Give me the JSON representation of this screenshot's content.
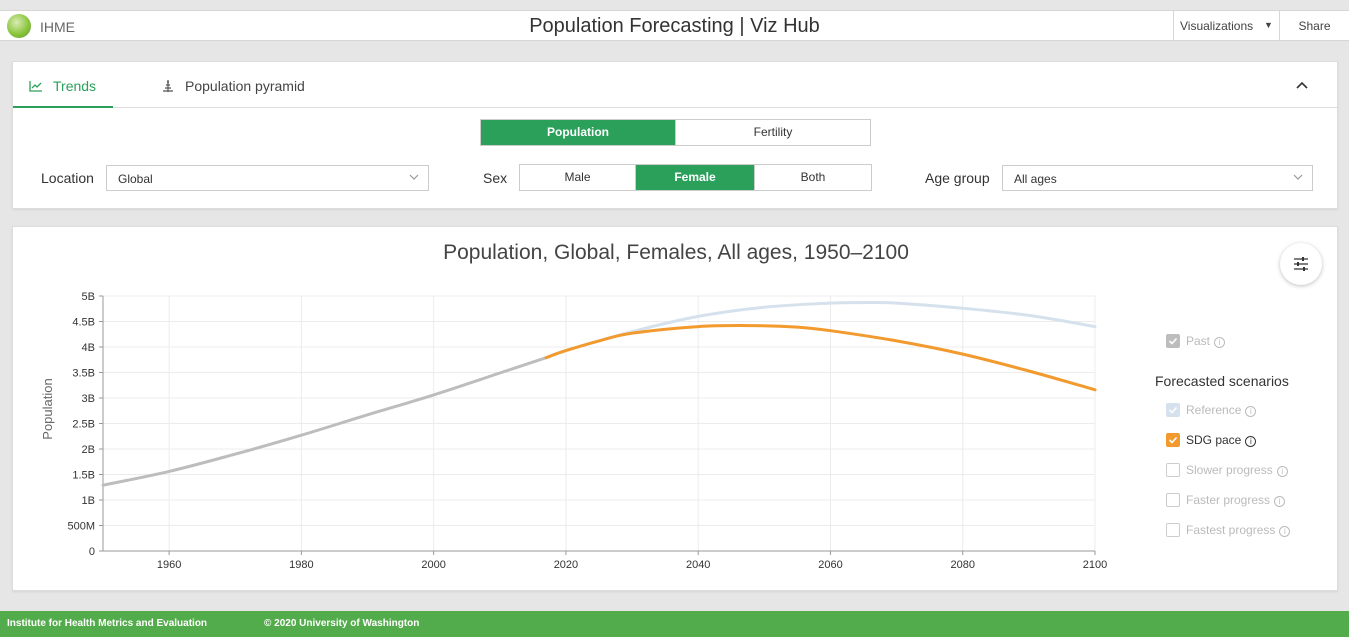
{
  "header": {
    "brand": "IHME",
    "title": "Population Forecasting | Viz Hub",
    "visualizations_label": "Visualizations",
    "share_label": "Share"
  },
  "tabs": {
    "trends": "Trends",
    "pyramid": "Population pyramid"
  },
  "controls": {
    "measure": {
      "options": [
        "Population",
        "Fertility"
      ],
      "selected": "Population"
    },
    "location": {
      "label": "Location",
      "value": "Global"
    },
    "sex": {
      "label": "Sex",
      "options": [
        "Male",
        "Female",
        "Both"
      ],
      "selected": "Female"
    },
    "age_group": {
      "label": "Age group",
      "value": "All ages"
    }
  },
  "legend": {
    "past": "Past",
    "heading": "Forecasted scenarios",
    "reference": "Reference",
    "sdg_pace": "SDG pace",
    "slower": "Slower progress",
    "faster": "Faster progress",
    "fastest": "Fastest progress"
  },
  "colors": {
    "accent_green": "#2aa05a",
    "past": "#bdbdbd",
    "reference": "#d5e1ec",
    "sdg_pace": "#f29a2e",
    "footer": "#53ac4b"
  },
  "chart_data": {
    "type": "line",
    "title": "Population, Global, Females, All ages, 1950–2100",
    "xlabel": "",
    "ylabel": "Population",
    "xlim": [
      1950,
      2100
    ],
    "ylim": [
      0,
      5000000000
    ],
    "x_ticks": [
      1960,
      1980,
      2000,
      2020,
      2040,
      2060,
      2080,
      2100
    ],
    "y_ticks": [
      0,
      500000000,
      1000000000,
      1500000000,
      2000000000,
      2500000000,
      3000000000,
      3500000000,
      4000000000,
      4500000000,
      5000000000
    ],
    "y_tick_labels": [
      "0",
      "500M",
      "1B",
      "1.5B",
      "2B",
      "2.5B",
      "3B",
      "3.5B",
      "4B",
      "4.5B",
      "5B"
    ],
    "x_tick_labels": [
      "1960",
      "1980",
      "2000",
      "2020",
      "2040",
      "2060",
      "2080",
      "2100"
    ],
    "grid": true,
    "series": [
      {
        "name": "Past",
        "color": "#bdbdbd",
        "points": [
          [
            1950,
            1290000000.0
          ],
          [
            1960,
            1560000000.0
          ],
          [
            1970,
            1900000000.0
          ],
          [
            1980,
            2270000000.0
          ],
          [
            1990,
            2670000000.0
          ],
          [
            2000,
            3060000000.0
          ],
          [
            2010,
            3490000000.0
          ],
          [
            2017,
            3790000000.0
          ]
        ]
      },
      {
        "name": "Reference",
        "color": "#d5e1ec",
        "points": [
          [
            2017,
            3790000000.0
          ],
          [
            2020,
            3930000000.0
          ],
          [
            2030,
            4300000000.0
          ],
          [
            2040,
            4600000000.0
          ],
          [
            2050,
            4780000000.0
          ],
          [
            2060,
            4860000000.0
          ],
          [
            2065,
            4870000000.0
          ],
          [
            2070,
            4860000000.0
          ],
          [
            2080,
            4760000000.0
          ],
          [
            2090,
            4620000000.0
          ],
          [
            2100,
            4400000000.0
          ]
        ]
      },
      {
        "name": "SDG pace",
        "color": "#f29a2e",
        "points": [
          [
            2017,
            3790000000.0
          ],
          [
            2020,
            3930000000.0
          ],
          [
            2025,
            4120000000.0
          ],
          [
            2030,
            4270000000.0
          ],
          [
            2040,
            4400000000.0
          ],
          [
            2048,
            4420000000.0
          ],
          [
            2055,
            4390000000.0
          ],
          [
            2060,
            4320000000.0
          ],
          [
            2070,
            4120000000.0
          ],
          [
            2080,
            3860000000.0
          ],
          [
            2090,
            3530000000.0
          ],
          [
            2100,
            3160000000.0
          ]
        ]
      }
    ]
  }
}
